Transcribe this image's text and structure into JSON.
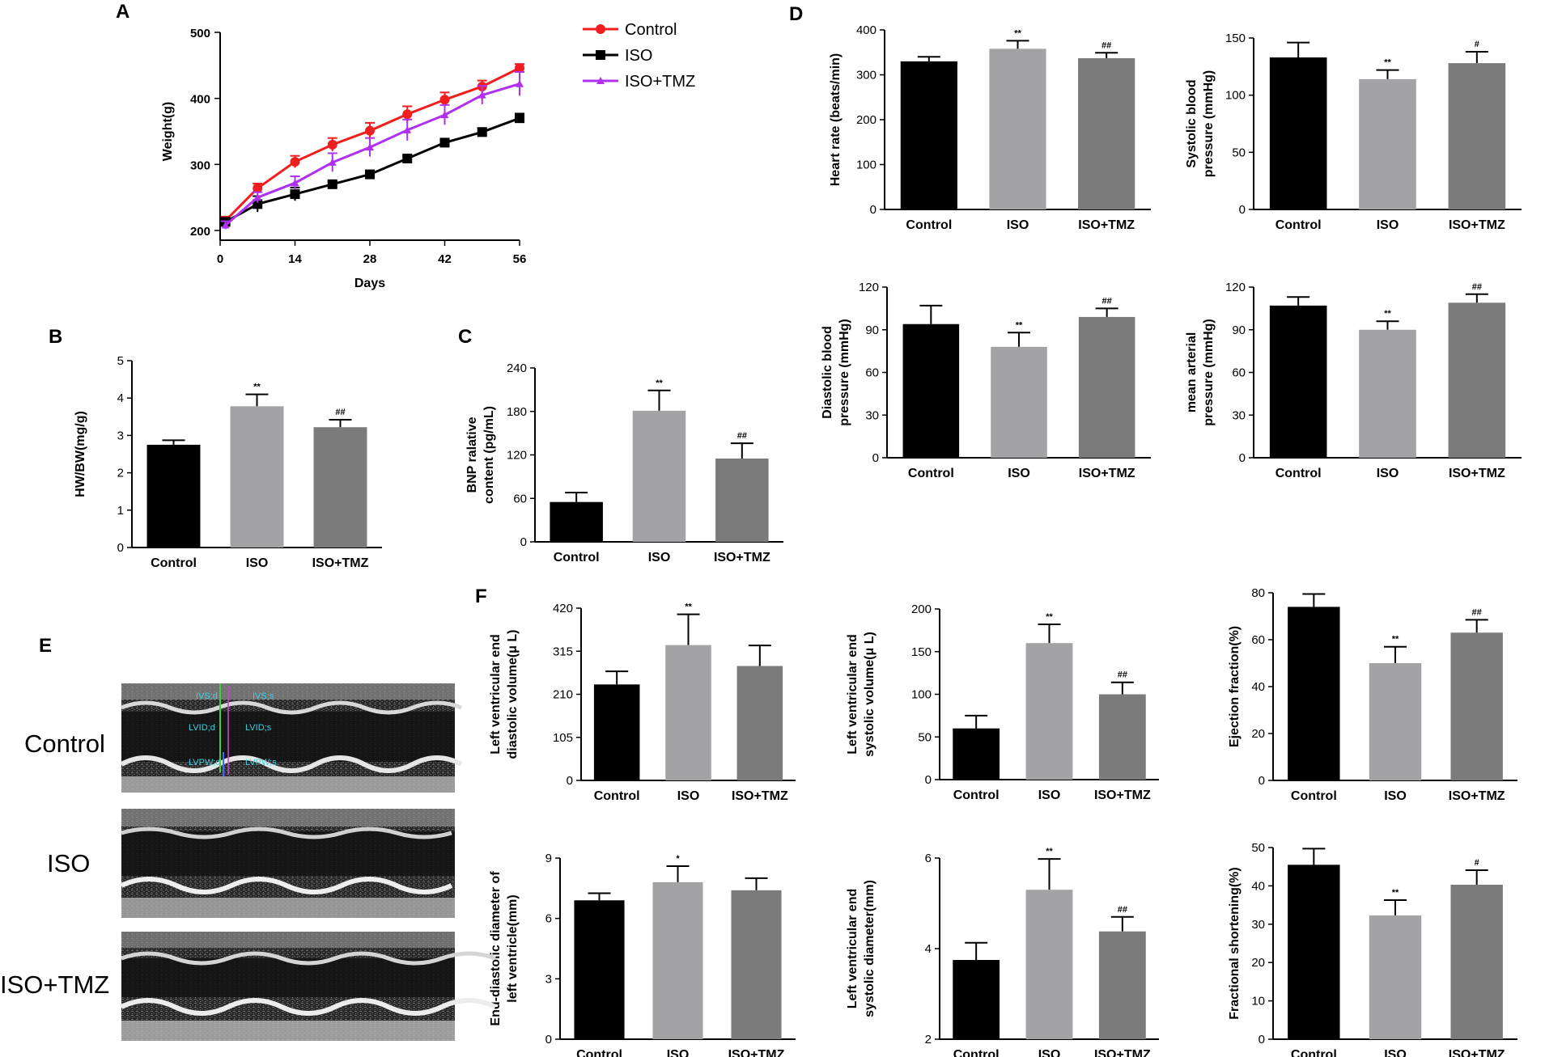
{
  "panel_letters": {
    "a": "A",
    "b": "B",
    "c": "C",
    "d": "D",
    "e": "E",
    "f": "F"
  },
  "colors": {
    "control": "#000000",
    "iso": "#a3a3a6",
    "iso_tmz": "#7b7b7b",
    "line_control": "#f01e1e",
    "line_iso": "#000000",
    "line_iso_tmz": "#b030f0"
  },
  "echo_labels": [
    "Control",
    "ISO",
    "ISO+TMZ"
  ],
  "echo_annotations": [
    "IVS;d",
    "IVS;s",
    "LVID;d",
    "LVID;s",
    "LVPW;d",
    "LVPW;s"
  ],
  "chart_data": [
    {
      "id": "A",
      "type": "line",
      "xlabel": "Days",
      "ylabel": "Weight(g)",
      "x": [
        1,
        7,
        14,
        21,
        28,
        35,
        42,
        49,
        56
      ],
      "xticks": [
        0,
        14,
        28,
        42,
        56
      ],
      "yticks": [
        200,
        300,
        400,
        500
      ],
      "xlim": [
        0,
        56
      ],
      "ylim": [
        200,
        500
      ],
      "legend_position": "top-right",
      "series": [
        {
          "name": "Control",
          "values": [
            215,
            264,
            304,
            330,
            351,
            376,
            398,
            418,
            446
          ],
          "errors": [
            6,
            7,
            9,
            10,
            12,
            12,
            11,
            9,
            6
          ]
        },
        {
          "name": "ISO",
          "values": [
            213,
            240,
            255,
            270,
            285,
            309,
            333,
            349,
            370
          ],
          "errors": [
            6,
            12,
            10,
            4,
            4,
            4,
            6,
            6,
            7
          ]
        },
        {
          "name": "ISO+TMZ",
          "values": [
            208,
            250,
            272,
            303,
            326,
            352,
            375,
            405,
            422
          ],
          "errors": [
            6,
            8,
            10,
            14,
            14,
            16,
            15,
            14,
            18
          ]
        }
      ]
    },
    {
      "id": "B",
      "type": "bar",
      "categories": [
        "Control",
        "ISO",
        "ISO+TMZ"
      ],
      "values": [
        2.75,
        3.78,
        3.22
      ],
      "errors": [
        0.12,
        0.32,
        0.2
      ],
      "marks": [
        "",
        "**",
        "##"
      ],
      "ylabel": "HW/BW(mg/g)",
      "ylim": [
        0,
        5
      ],
      "yticks": [
        0,
        1,
        2,
        3,
        4,
        5
      ]
    },
    {
      "id": "C",
      "type": "bar",
      "categories": [
        "Control",
        "ISO",
        "ISO+TMZ"
      ],
      "values": [
        55,
        181,
        115
      ],
      "errors": [
        13,
        28,
        21
      ],
      "marks": [
        "",
        "**",
        "##"
      ],
      "ylabel": "BNP ralative content (pg/mL)",
      "ylim": [
        0,
        240
      ],
      "yticks": [
        0,
        60,
        120,
        180,
        240
      ]
    },
    {
      "id": "D1",
      "type": "bar",
      "categories": [
        "Control",
        "ISO",
        "ISO+TMZ"
      ],
      "values": [
        330,
        358,
        337
      ],
      "errors": [
        10,
        18,
        12
      ],
      "marks": [
        "",
        "**",
        "##"
      ],
      "ylabel": "Heart rate (beats/min)",
      "ylim": [
        0,
        400
      ],
      "yticks": [
        0,
        100,
        200,
        300,
        400
      ]
    },
    {
      "id": "D2",
      "type": "bar",
      "categories": [
        "Control",
        "ISO",
        "ISO+TMZ"
      ],
      "values": [
        133,
        114,
        128
      ],
      "errors": [
        13,
        8,
        10
      ],
      "marks": [
        "",
        "**",
        "#"
      ],
      "ylabel": "Systolic blood pressure (mmHg)",
      "ylim": [
        0,
        150
      ],
      "yticks": [
        0,
        50,
        100,
        150
      ]
    },
    {
      "id": "D3",
      "type": "bar",
      "categories": [
        "Control",
        "ISO",
        "ISO+TMZ"
      ],
      "values": [
        94,
        78,
        99
      ],
      "errors": [
        13,
        10,
        6
      ],
      "marks": [
        "",
        "**",
        "##"
      ],
      "ylabel": "Diastolic blood pressure (mmHg)",
      "ylim": [
        0,
        120
      ],
      "yticks": [
        0,
        30,
        60,
        90,
        120
      ]
    },
    {
      "id": "D4",
      "type": "bar",
      "categories": [
        "Control",
        "ISO",
        "ISO+TMZ"
      ],
      "values": [
        107,
        90,
        109
      ],
      "errors": [
        6,
        6,
        6
      ],
      "marks": [
        "",
        "**",
        "##"
      ],
      "ylabel": "mean arterial pressure (mmHg)",
      "ylim": [
        0,
        120
      ],
      "yticks": [
        0,
        30,
        60,
        90,
        120
      ]
    },
    {
      "id": "F1",
      "type": "bar",
      "categories": [
        "Control",
        "ISO",
        "ISO+TMZ"
      ],
      "values": [
        234,
        330,
        279
      ],
      "errors": [
        32,
        75,
        50
      ],
      "marks": [
        "",
        "**",
        ""
      ],
      "ylabel": "Left ventricular end diastolic volume(μ L)",
      "ylim": [
        0,
        420
      ],
      "yticks": [
        0,
        105,
        210,
        315,
        420
      ]
    },
    {
      "id": "F2",
      "type": "bar",
      "categories": [
        "Control",
        "ISO",
        "ISO+TMZ"
      ],
      "values": [
        60,
        160,
        100
      ],
      "errors": [
        15,
        22,
        14
      ],
      "marks": [
        "",
        "**",
        "##"
      ],
      "ylabel": "Left ventricular end systolic volume(μ L)",
      "ylim": [
        0,
        200
      ],
      "yticks": [
        0,
        50,
        100,
        150,
        200
      ]
    },
    {
      "id": "F3",
      "type": "bar",
      "categories": [
        "Control",
        "ISO",
        "ISO+TMZ"
      ],
      "values": [
        74,
        50,
        63
      ],
      "errors": [
        5.5,
        7,
        5.5
      ],
      "marks": [
        "",
        "**",
        "##"
      ],
      "ylabel": "Ejection fraction(%)",
      "ylim": [
        0,
        80
      ],
      "yticks": [
        0,
        20,
        40,
        60,
        80
      ]
    },
    {
      "id": "F4",
      "type": "bar",
      "categories": [
        "Control",
        "ISO",
        "ISO+TMZ"
      ],
      "values": [
        6.9,
        7.8,
        7.4
      ],
      "errors": [
        0.35,
        0.8,
        0.6
      ],
      "marks": [
        "",
        "*",
        ""
      ],
      "ylabel": "End-diastolic diameter of left ventricle(mm)",
      "ylim": [
        0,
        9
      ],
      "yticks": [
        0,
        3,
        6,
        9
      ]
    },
    {
      "id": "F5",
      "type": "bar",
      "categories": [
        "Control",
        "ISO",
        "ISO+TMZ"
      ],
      "values": [
        3.75,
        5.3,
        4.38
      ],
      "errors": [
        0.38,
        0.68,
        0.32
      ],
      "marks": [
        "",
        "**",
        "##"
      ],
      "ylabel": "Left ventricular end systolic diameter(mm)",
      "ylim": [
        2,
        6
      ],
      "yticks": [
        2,
        4,
        6
      ]
    },
    {
      "id": "F6",
      "type": "bar",
      "categories": [
        "Control",
        "ISO",
        "ISO+TMZ"
      ],
      "values": [
        45.5,
        32.3,
        40.3
      ],
      "errors": [
        4.2,
        4,
        3.8
      ],
      "marks": [
        "",
        "**",
        "#"
      ],
      "ylabel": "Fractional shortening(%)",
      "ylim": [
        0,
        50
      ],
      "yticks": [
        0,
        10,
        20,
        30,
        40,
        50
      ]
    }
  ]
}
